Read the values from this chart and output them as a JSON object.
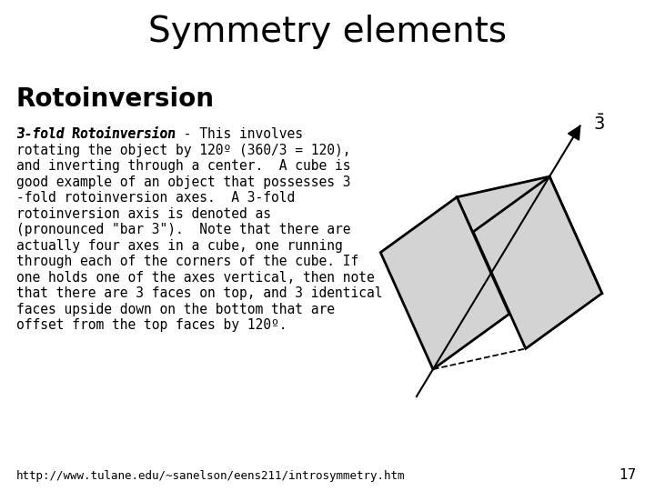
{
  "title": "Symmetry elements",
  "title_bg": "#FFD700",
  "title_color": "#000000",
  "title_fontsize": 28,
  "subtitle": "Rotoinversion",
  "subtitle_fontsize": 20,
  "body_fontsize": 10.5,
  "footer_text": "http://www.tulane.edu/~sanelson/eens211/introsymmetry.htm",
  "footer_fontsize": 9,
  "page_number": "17",
  "bg_color": "#FFFFFF",
  "cube_face_color": "#D3D3D3",
  "cube_edge_color": "#000000",
  "axis_color": "#000000",
  "body_line1": "3-fold Rotoinversion - This involves",
  "body_line2": "rotating the object by 120º (360/3 = 120),",
  "body_line3": "and inverting through a center.  A cube is",
  "body_line4": "good example of an object that possesses 3",
  "body_line5": "-fold rotoinversion axes.  A 3-fold",
  "body_line6": "rotoinversion axis is denoted as",
  "body_line7": "(pronounced \"bar 3\").  Note that there are",
  "body_line8": "actually four axes in a cube, one running",
  "body_line9": "through each of the corners of the cube. If",
  "body_line10": "one holds one of the axes vertical, then note",
  "body_line11": "that there are 3 faces on top, and 3 identical",
  "body_line12": "faces upside down on the bottom that are",
  "body_line13": "offset from the top faces by 120º."
}
